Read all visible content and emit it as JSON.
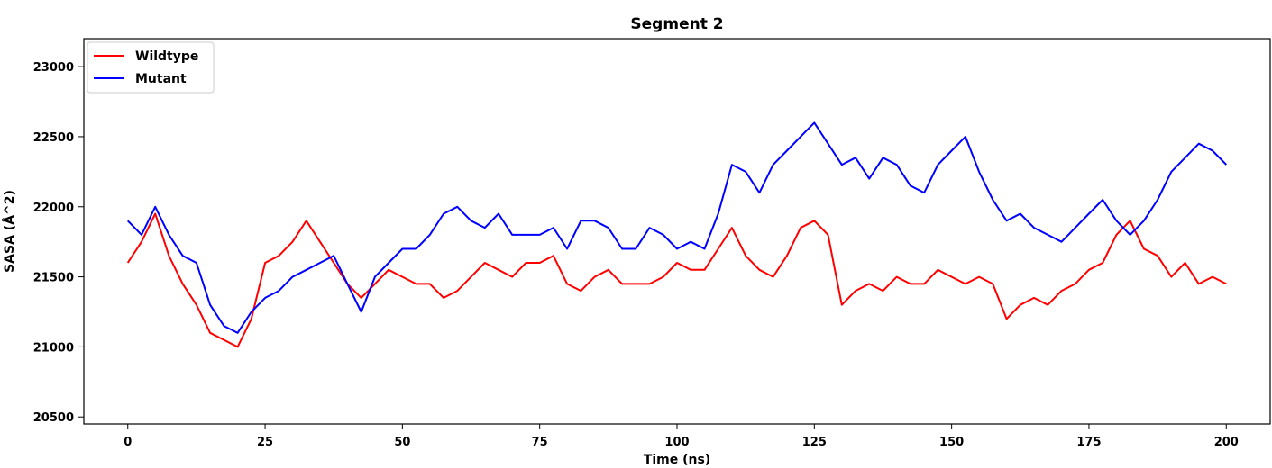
{
  "chart_data": {
    "type": "line",
    "title": "Segment 2",
    "xlabel": "Time (ns)",
    "ylabel": "SASA (Å^2)",
    "xlim": [
      -8,
      208
    ],
    "ylim": [
      20450,
      23200
    ],
    "xticks": [
      0,
      25,
      50,
      75,
      100,
      125,
      150,
      175,
      200
    ],
    "yticks": [
      20500,
      21000,
      21500,
      22000,
      22500,
      23000
    ],
    "grid": false,
    "legend_position": "top-left",
    "series": [
      {
        "name": "Wildtype",
        "color": "#ff0000",
        "x": [
          0,
          2.5,
          5,
          7.5,
          10,
          12.5,
          15,
          17.5,
          20,
          22.5,
          25,
          27.5,
          30,
          32.5,
          35,
          37.5,
          40,
          42.5,
          45,
          47.5,
          50,
          52.5,
          55,
          57.5,
          60,
          62.5,
          65,
          67.5,
          70,
          72.5,
          75,
          77.5,
          80,
          82.5,
          85,
          87.5,
          90,
          92.5,
          95,
          97.5,
          100,
          102.5,
          105,
          107.5,
          110,
          112.5,
          115,
          117.5,
          120,
          122.5,
          125,
          127.5,
          130,
          132.5,
          135,
          137.5,
          140,
          142.5,
          145,
          147.5,
          150,
          152.5,
          155,
          157.5,
          160,
          162.5,
          165,
          167.5,
          170,
          172.5,
          175,
          177.5,
          180,
          182.5,
          185,
          187.5,
          190,
          192.5,
          195,
          197.5,
          200
        ],
        "values": [
          21600,
          21750,
          21950,
          21650,
          21450,
          21300,
          21100,
          21050,
          21000,
          21200,
          21600,
          21650,
          21750,
          21900,
          21750,
          21600,
          21450,
          21350,
          21450,
          21550,
          21500,
          21450,
          21450,
          21350,
          21400,
          21500,
          21600,
          21550,
          21500,
          21600,
          21600,
          21650,
          21450,
          21400,
          21500,
          21550,
          21450,
          21450,
          21450,
          21500,
          21600,
          21550,
          21550,
          21700,
          21850,
          21650,
          21550,
          21500,
          21650,
          21850,
          21900,
          21800,
          21300,
          21400,
          21450,
          21400,
          21500,
          21450,
          21450,
          21550,
          21500,
          21450,
          21500,
          21450,
          21200,
          21300,
          21350,
          21300,
          21400,
          21450,
          21550,
          21600,
          21800,
          21900,
          21700,
          21650,
          21500,
          21600,
          21450,
          21500,
          21450
        ]
      },
      {
        "name": "Mutant",
        "color": "#0000ff",
        "x": [
          0,
          2.5,
          5,
          7.5,
          10,
          12.5,
          15,
          17.5,
          20,
          22.5,
          25,
          27.5,
          30,
          32.5,
          35,
          37.5,
          40,
          42.5,
          45,
          47.5,
          50,
          52.5,
          55,
          57.5,
          60,
          62.5,
          65,
          67.5,
          70,
          72.5,
          75,
          77.5,
          80,
          82.5,
          85,
          87.5,
          90,
          92.5,
          95,
          97.5,
          100,
          102.5,
          105,
          107.5,
          110,
          112.5,
          115,
          117.5,
          120,
          122.5,
          125,
          127.5,
          130,
          132.5,
          135,
          137.5,
          140,
          142.5,
          145,
          147.5,
          150,
          152.5,
          155,
          157.5,
          160,
          162.5,
          165,
          167.5,
          170,
          172.5,
          175,
          177.5,
          180,
          182.5,
          185,
          187.5,
          190,
          192.5,
          195,
          197.5,
          200
        ],
        "values": [
          21900,
          21800,
          22000,
          21800,
          21650,
          21600,
          21300,
          21150,
          21100,
          21250,
          21350,
          21400,
          21500,
          21550,
          21600,
          21650,
          21450,
          21250,
          21500,
          21600,
          21700,
          21700,
          21800,
          21950,
          22000,
          21900,
          21850,
          21950,
          21800,
          21800,
          21800,
          21850,
          21700,
          21900,
          21900,
          21850,
          21700,
          21700,
          21850,
          21800,
          21700,
          21750,
          21700,
          21950,
          22300,
          22250,
          22100,
          22300,
          22400,
          22500,
          22600,
          22450,
          22300,
          22350,
          22200,
          22350,
          22300,
          22150,
          22100,
          22300,
          22400,
          22500,
          22250,
          22050,
          21900,
          21950,
          21850,
          21800,
          21750,
          21850,
          21950,
          22050,
          21900,
          21800,
          21900,
          22050,
          22250,
          22350,
          22450,
          22400,
          22300
        ]
      }
    ]
  }
}
